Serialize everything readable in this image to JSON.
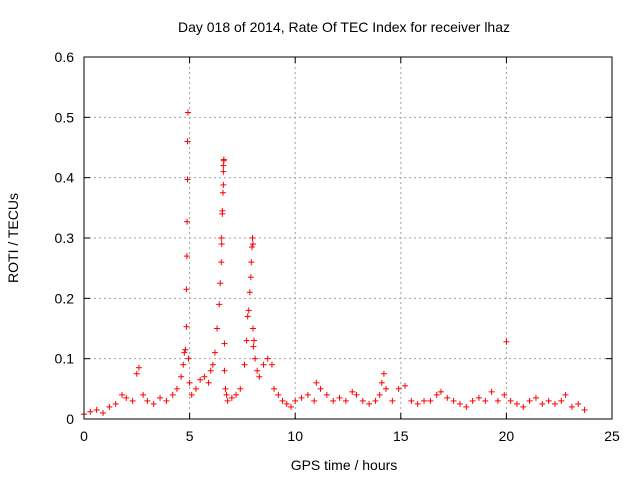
{
  "chart_data": {
    "type": "scatter",
    "title": "Day 018 of 2014, Rate Of TEC Index for receiver lhaz",
    "xlabel": "GPS time / hours",
    "ylabel": "ROTI / TECUs",
    "xlim": [
      0,
      25
    ],
    "ylim": [
      0,
      0.6
    ],
    "xticks": [
      0,
      5,
      10,
      15,
      20,
      25
    ],
    "yticks": [
      0,
      0.1,
      0.2,
      0.3,
      0.4,
      0.5,
      0.6
    ],
    "xtick_labels": [
      "0",
      "5",
      "10",
      "15",
      "20",
      "25"
    ],
    "ytick_labels": [
      "0",
      "0.1",
      "0.2",
      "0.3",
      "0.4",
      "0.5",
      "0.6"
    ],
    "grid": true,
    "marker": "+",
    "color": "#ff0000",
    "series": [
      {
        "name": "ROTI",
        "x": [
          0.0,
          0.3,
          0.6,
          0.9,
          1.2,
          1.5,
          1.8,
          2.0,
          2.3,
          2.5,
          2.6,
          2.8,
          3.0,
          3.3,
          3.6,
          3.9,
          4.2,
          4.4,
          4.6,
          4.7,
          4.75,
          4.8,
          4.85,
          4.85,
          4.87,
          4.88,
          4.9,
          4.9,
          4.92,
          4.95,
          5.0,
          5.1,
          5.3,
          5.5,
          5.7,
          5.9,
          6.0,
          6.1,
          6.2,
          6.3,
          6.4,
          6.45,
          6.5,
          6.5,
          6.52,
          6.55,
          6.55,
          6.58,
          6.6,
          6.6,
          6.6,
          6.62,
          6.62,
          6.65,
          6.65,
          6.7,
          6.75,
          6.8,
          7.0,
          7.2,
          7.4,
          7.6,
          7.7,
          7.75,
          7.8,
          7.85,
          7.9,
          7.92,
          7.95,
          7.98,
          8.0,
          8.0,
          8.02,
          8.05,
          8.1,
          8.2,
          8.3,
          8.5,
          8.7,
          8.9,
          9.0,
          9.2,
          9.4,
          9.6,
          9.8,
          10.0,
          10.3,
          10.6,
          10.9,
          11.0,
          11.2,
          11.5,
          11.8,
          12.1,
          12.4,
          12.7,
          12.9,
          13.2,
          13.5,
          13.8,
          14.0,
          14.1,
          14.2,
          14.3,
          14.6,
          14.9,
          15.2,
          15.5,
          15.8,
          16.1,
          16.4,
          16.7,
          16.9,
          17.2,
          17.5,
          17.8,
          18.1,
          18.4,
          18.7,
          19.0,
          19.3,
          19.6,
          19.9,
          20.0,
          20.2,
          20.5,
          20.8,
          21.1,
          21.4,
          21.7,
          22.0,
          22.3,
          22.6,
          22.8,
          23.1,
          23.4,
          23.7
        ],
        "y": [
          0.008,
          0.012,
          0.015,
          0.01,
          0.02,
          0.025,
          0.04,
          0.035,
          0.03,
          0.075,
          0.085,
          0.04,
          0.03,
          0.025,
          0.035,
          0.03,
          0.04,
          0.05,
          0.07,
          0.09,
          0.11,
          0.115,
          0.153,
          0.215,
          0.27,
          0.327,
          0.397,
          0.46,
          0.508,
          0.1,
          0.06,
          0.04,
          0.05,
          0.065,
          0.07,
          0.06,
          0.08,
          0.09,
          0.11,
          0.15,
          0.19,
          0.225,
          0.26,
          0.3,
          0.29,
          0.34,
          0.345,
          0.375,
          0.388,
          0.41,
          0.42,
          0.428,
          0.43,
          0.125,
          0.08,
          0.05,
          0.04,
          0.03,
          0.035,
          0.04,
          0.05,
          0.09,
          0.13,
          0.17,
          0.18,
          0.21,
          0.235,
          0.26,
          0.285,
          0.3,
          0.29,
          0.15,
          0.12,
          0.13,
          0.1,
          0.08,
          0.07,
          0.09,
          0.1,
          0.09,
          0.05,
          0.04,
          0.03,
          0.025,
          0.02,
          0.03,
          0.035,
          0.04,
          0.03,
          0.06,
          0.05,
          0.04,
          0.03,
          0.035,
          0.03,
          0.045,
          0.04,
          0.03,
          0.025,
          0.03,
          0.04,
          0.06,
          0.075,
          0.05,
          0.03,
          0.05,
          0.055,
          0.03,
          0.025,
          0.03,
          0.03,
          0.04,
          0.045,
          0.035,
          0.03,
          0.025,
          0.02,
          0.03,
          0.035,
          0.03,
          0.045,
          0.03,
          0.04,
          0.128,
          0.03,
          0.025,
          0.02,
          0.03,
          0.035,
          0.025,
          0.03,
          0.025,
          0.03,
          0.04,
          0.02,
          0.025,
          0.015
        ]
      }
    ]
  }
}
